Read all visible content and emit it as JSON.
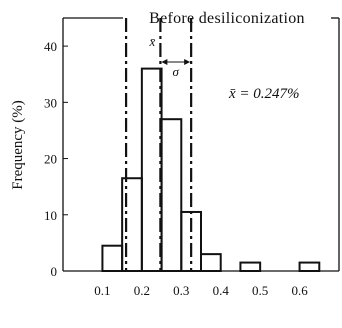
{
  "chart_data": {
    "type": "bar",
    "title": "Before desiliconization",
    "xlabel": "",
    "ylabel": "Frequency (%)",
    "xlim": [
      0,
      0.7
    ],
    "ylim": [
      0,
      45
    ],
    "x_ticks": [
      "0.1",
      "0.2",
      "0.3",
      "0.4",
      "0.5",
      "0.6"
    ],
    "y_ticks": [
      "0",
      "10",
      "20",
      "30",
      "40"
    ],
    "bin_width": 0.05,
    "bins": [
      {
        "x0": 0.1,
        "x1": 0.15,
        "value": 4.5
      },
      {
        "x0": 0.15,
        "x1": 0.2,
        "value": 16.5
      },
      {
        "x0": 0.2,
        "x1": 0.25,
        "value": 36.0
      },
      {
        "x0": 0.25,
        "x1": 0.3,
        "value": 27.0
      },
      {
        "x0": 0.3,
        "x1": 0.35,
        "value": 10.5
      },
      {
        "x0": 0.35,
        "x1": 0.4,
        "value": 3.0
      },
      {
        "x0": 0.45,
        "x1": 0.5,
        "value": 1.5
      },
      {
        "x0": 0.6,
        "x1": 0.65,
        "value": 1.5
      }
    ],
    "reference_lines": [
      {
        "x": 0.16,
        "style": "dash-dot",
        "meaning": "x̄ − σ"
      },
      {
        "x": 0.247,
        "style": "dash-dot",
        "meaning": "x̄"
      },
      {
        "x": 0.325,
        "style": "dash-dot",
        "meaning": "x̄ + σ"
      }
    ],
    "annotations": {
      "mean_symbol": "x̄",
      "sigma_symbol": "σ",
      "mean_text": "x̄ = 0.247%"
    },
    "grid": false,
    "legend": "none"
  }
}
